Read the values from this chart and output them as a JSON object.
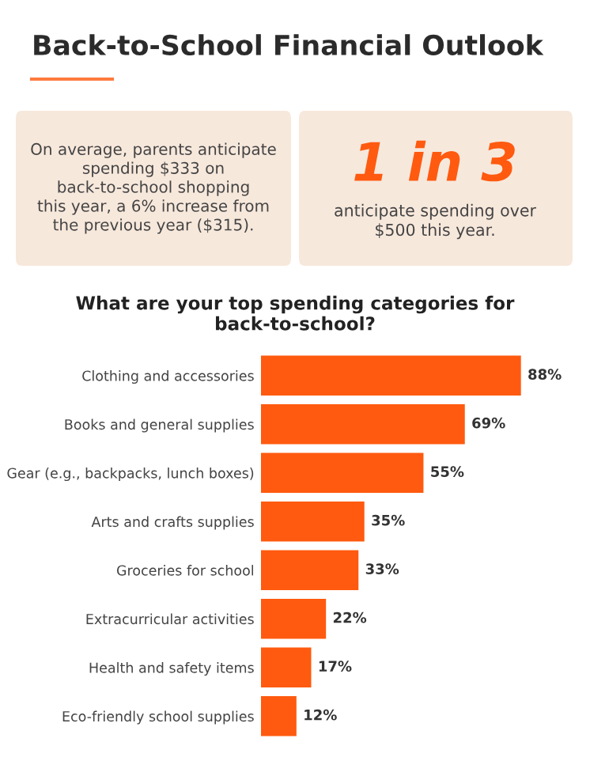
{
  "chart_data": [
    {
      "type": "other",
      "title": "Back-to-School Financial Outlook",
      "annotations": [
        "On average, parents anticipate\nspending $333 on\nback-to-school shopping\nthis year, a 6% increase from\nthe previous year ($315).",
        "1 in 3",
        "anticipate spending over\n$500 this year."
      ]
    },
    {
      "type": "bar",
      "orientation": "horizontal",
      "title": "What are your top spending categories for\nback-to-school?",
      "categories": [
        "Clothing and accessories",
        "Books and general supplies",
        "Gear (e.g., backpacks, lunch boxes)",
        "Arts and crafts supplies",
        "Groceries for school",
        "Extracurricular activities",
        "Health and safety items",
        "Eco-friendly school supplies"
      ],
      "values": [
        88,
        69,
        55,
        35,
        33,
        22,
        17,
        12
      ],
      "color": "#ff5a0f",
      "value_labels": [
        "88%",
        "69%",
        "55%",
        "35%",
        "33%",
        "22%",
        "17%",
        "12%"
      ]
    }
  ]
}
